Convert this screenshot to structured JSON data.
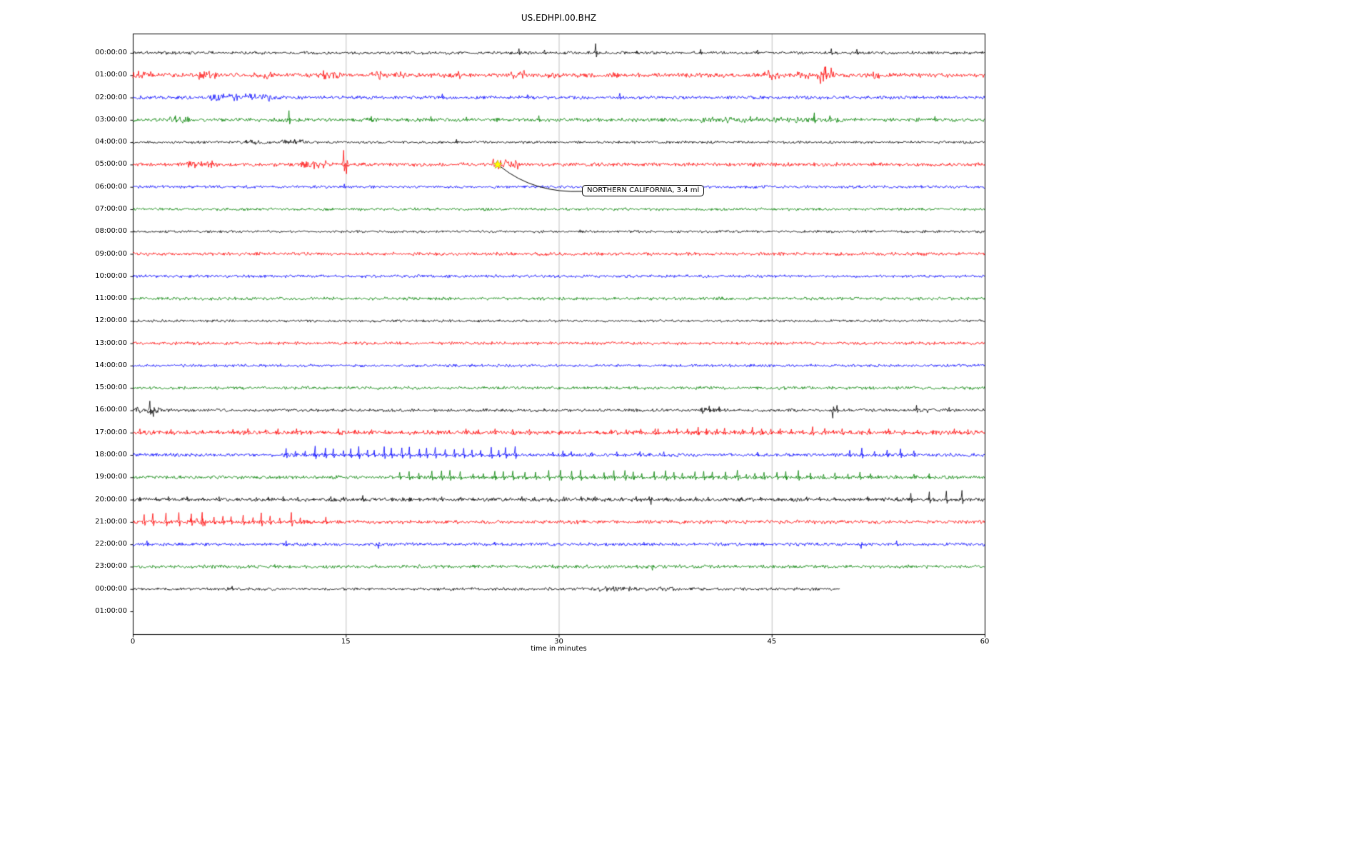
{
  "title": "US.EDHPI.00.BHZ",
  "xlabel": "time in minutes",
  "x_ticks": [
    0,
    15,
    30,
    45,
    60
  ],
  "annotation": {
    "text": "NORTHERN CALIFORNIA, 3.4 ml",
    "row": 5,
    "minute": 25.7,
    "marker": "star",
    "marker_color": "#ffff00"
  },
  "colors": {
    "background": "#ffffff",
    "axis": "#000000",
    "grid": "#b0b0b0",
    "trace_cycle": [
      "#000000",
      "#ff0000",
      "#0000ff",
      "#008000"
    ]
  },
  "chart_data": {
    "type": "line",
    "kind": "helicorder-dayplot",
    "x_range": [
      0,
      60
    ],
    "minutes_per_row": 60,
    "rows": [
      {
        "label": "00:00:00",
        "color": "#000000",
        "base": 1.6,
        "spikes": [
          [
            27.2,
            6
          ],
          [
            29,
            4
          ],
          [
            32.6,
            13
          ],
          [
            35.5,
            3
          ],
          [
            40,
            5
          ],
          [
            44,
            4
          ],
          [
            49.2,
            6
          ],
          [
            51,
            5
          ]
        ]
      },
      {
        "label": "01:00:00",
        "color": "#ff0000",
        "base": 2.2,
        "bursts": [
          [
            0,
            1.5,
            4.5
          ],
          [
            4.5,
            6,
            4
          ],
          [
            8.5,
            10,
            4
          ],
          [
            13.3,
            14.6,
            5
          ],
          [
            16.6,
            17.5,
            5
          ],
          [
            18.4,
            19.2,
            4
          ],
          [
            21.8,
            23.2,
            4
          ],
          [
            26.3,
            27.6,
            5
          ],
          [
            29,
            29.8,
            4
          ],
          [
            33.5,
            34.2,
            3.5
          ],
          [
            44.3,
            45.6,
            5
          ],
          [
            46.8,
            47.7,
            5
          ],
          [
            48.2,
            49.4,
            8
          ],
          [
            52,
            52.6,
            4
          ]
        ],
        "spikes": [
          [
            48.8,
            12
          ]
        ]
      },
      {
        "label": "02:00:00",
        "color": "#0000ff",
        "base": 1.8,
        "bursts": [
          [
            5.3,
            9.7,
            3.8
          ]
        ],
        "spikes": [
          [
            21.8,
            5
          ],
          [
            27.8,
            4
          ],
          [
            34.3,
            6
          ]
        ]
      },
      {
        "label": "03:00:00",
        "color": "#008000",
        "base": 2.0,
        "bursts": [
          [
            2.5,
            4,
            3.5
          ],
          [
            40,
            50,
            3
          ]
        ],
        "spikes": [
          [
            3,
            6
          ],
          [
            11,
            13
          ],
          [
            16.8,
            5
          ],
          [
            21,
            5
          ],
          [
            23.5,
            4
          ],
          [
            28.6,
            6
          ],
          [
            43.5,
            5
          ],
          [
            48,
            10
          ],
          [
            49.1,
            6
          ],
          [
            56.5,
            5
          ]
        ]
      },
      {
        "label": "04:00:00",
        "color": "#000000",
        "base": 1.4,
        "bursts": [
          [
            7.5,
            12,
            2.4
          ]
        ],
        "spikes": [
          [
            8,
            3
          ],
          [
            11.4,
            4
          ],
          [
            22.8,
            4
          ]
        ]
      },
      {
        "label": "05:00:00",
        "color": "#ff0000",
        "base": 2.0,
        "bursts": [
          [
            3.8,
            5.6,
            4
          ],
          [
            11.8,
            13.6,
            4.5
          ],
          [
            25.3,
            27.2,
            6
          ]
        ],
        "spikes": [
          [
            14.85,
            20
          ],
          [
            15.05,
            13,
            -1
          ]
        ]
      },
      {
        "label": "06:00:00",
        "color": "#0000ff",
        "base": 1.5,
        "spikes": [
          [
            14.9,
            4
          ]
        ]
      },
      {
        "label": "07:00:00",
        "color": "#008000",
        "base": 1.5
      },
      {
        "label": "08:00:00",
        "color": "#000000",
        "base": 1.3,
        "spikes": [
          [
            31.5,
            2.5
          ]
        ]
      },
      {
        "label": "09:00:00",
        "color": "#ff0000",
        "base": 1.7
      },
      {
        "label": "10:00:00",
        "color": "#0000ff",
        "base": 1.5
      },
      {
        "label": "11:00:00",
        "color": "#008000",
        "base": 1.6,
        "spikes": [
          [
            41.5,
            2.5
          ]
        ]
      },
      {
        "label": "12:00:00",
        "color": "#000000",
        "base": 1.3
      },
      {
        "label": "13:00:00",
        "color": "#ff0000",
        "base": 1.6
      },
      {
        "label": "14:00:00",
        "color": "#0000ff",
        "base": 1.5
      },
      {
        "label": "15:00:00",
        "color": "#008000",
        "base": 1.6
      },
      {
        "label": "16:00:00",
        "color": "#000000",
        "base": 1.6,
        "bursts": [
          [
            0,
            2,
            3
          ],
          [
            40,
            42,
            3
          ],
          [
            55,
            56,
            2.6
          ]
        ],
        "spikes": [
          [
            1.2,
            13
          ],
          [
            1.45,
            9,
            -1
          ],
          [
            40.6,
            6
          ],
          [
            41.3,
            5
          ],
          [
            49.3,
            11,
            -1
          ],
          [
            49.6,
            7
          ],
          [
            55.2,
            7
          ],
          [
            57.5,
            4
          ]
        ]
      },
      {
        "label": "17:00:00",
        "color": "#ff0000",
        "base": 2.2,
        "trains": [
          [
            0.5,
            37,
            1.1,
            4.5
          ],
          [
            37,
            50.5,
            0.7,
            6.5
          ],
          [
            50.5,
            59.5,
            1.2,
            4.5
          ]
        ]
      },
      {
        "label": "18:00:00",
        "color": "#0000ff",
        "base": 1.8,
        "trains": [
          [
            10.8,
            27.5,
            0.6,
            10
          ],
          [
            28,
            38,
            1.6,
            4
          ],
          [
            50.5,
            55.5,
            0.8,
            8
          ]
        ],
        "spikes": [
          [
            30.3,
            6
          ],
          [
            44,
            4
          ]
        ]
      },
      {
        "label": "19:00:00",
        "color": "#008000",
        "base": 1.8,
        "trains": [
          [
            18.8,
            52,
            0.75,
            8
          ],
          [
            52.5,
            57,
            1.3,
            4
          ]
        ]
      },
      {
        "label": "20:00:00",
        "color": "#000000",
        "base": 2.0,
        "trains": [
          [
            0.5,
            54,
            1.1,
            3.5
          ]
        ],
        "spikes": [
          [
            16.2,
            6
          ],
          [
            36.5,
            7,
            -1
          ],
          [
            54.8,
            9
          ],
          [
            56.1,
            11
          ],
          [
            57.3,
            12
          ],
          [
            58.4,
            13
          ]
        ]
      },
      {
        "label": "21:00:00",
        "color": "#ff0000",
        "base": 2.0,
        "trains": [
          [
            0.8,
            11.2,
            0.75,
            11
          ]
        ],
        "bursts": [
          [
            3.8,
            5.2,
            4
          ]
        ],
        "spikes": [
          [
            11.8,
            6
          ],
          [
            13.6,
            7
          ]
        ]
      },
      {
        "label": "22:00:00",
        "color": "#0000ff",
        "base": 1.7,
        "spikes": [
          [
            1,
            5
          ],
          [
            10.8,
            5
          ],
          [
            17.3,
            6,
            -1
          ],
          [
            25.5,
            3
          ],
          [
            36,
            3
          ],
          [
            51.3,
            6,
            -1
          ],
          [
            53.8,
            5
          ]
        ]
      },
      {
        "label": "23:00:00",
        "color": "#008000",
        "base": 1.8,
        "spikes": [
          [
            36.6,
            5,
            -1
          ],
          [
            10,
            3
          ]
        ]
      },
      {
        "label": "00:00:00",
        "color": "#000000",
        "base": 1.5,
        "end": 49.8,
        "bursts": [
          [
            32,
            38.5,
            2.4
          ]
        ],
        "spikes": [
          [
            7,
            4
          ]
        ]
      },
      {
        "label": "01:00:00",
        "color": "#ff0000",
        "empty": true
      }
    ]
  }
}
